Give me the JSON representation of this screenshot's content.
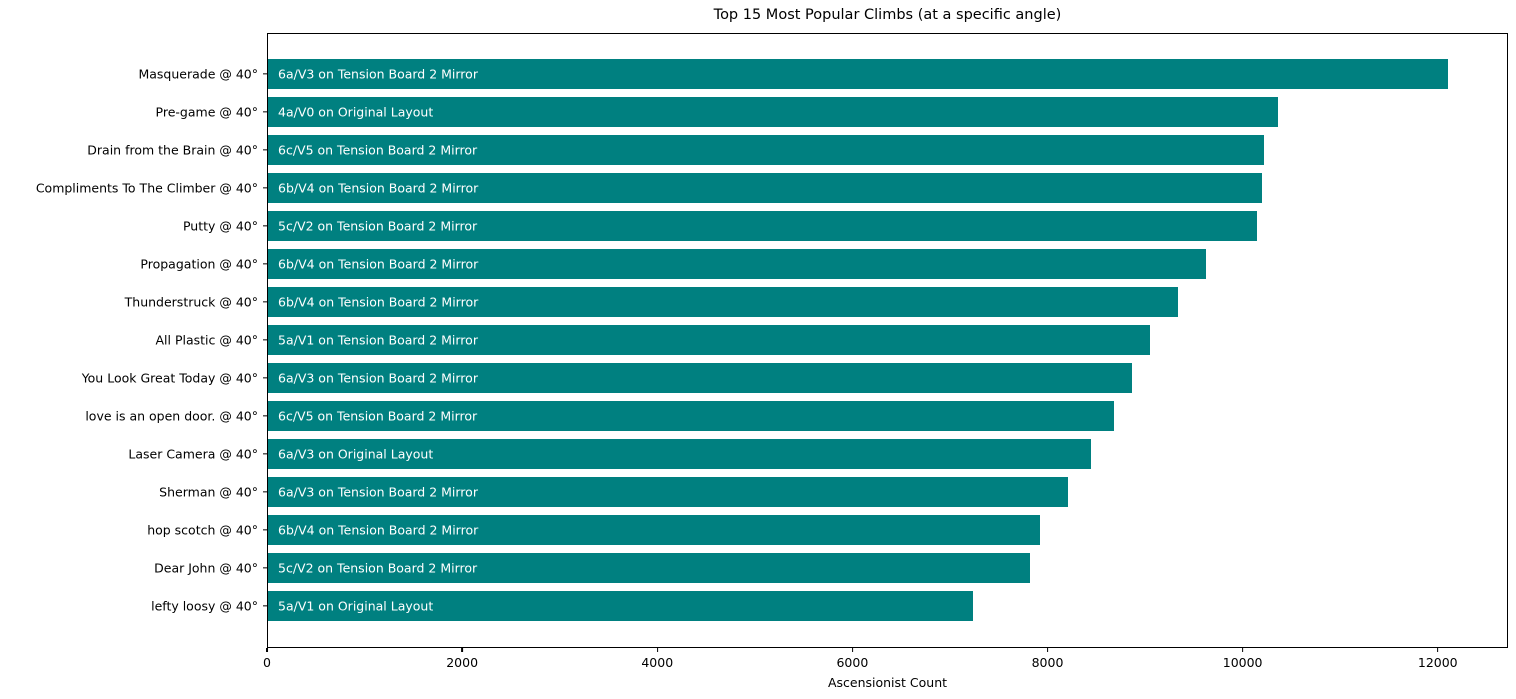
{
  "chart_data": {
    "type": "bar",
    "orientation": "horizontal",
    "title": "Top 15 Most Popular Climbs (at a specific angle)",
    "xlabel": "Ascensionist Count",
    "ylabel": "",
    "xlim": [
      0,
      12720
    ],
    "xticks": [
      0,
      2000,
      4000,
      6000,
      8000,
      10000,
      12000
    ],
    "grid": false,
    "legend": false,
    "bar_color": "#008080",
    "bar_label_color": "#ffffff",
    "categories": [
      "Masquerade @ 40°",
      "Pre-game @ 40°",
      "Drain from the Brain @ 40°",
      "Compliments To The Climber @ 40°",
      "Putty @ 40°",
      "Propagation @ 40°",
      "Thunderstruck @ 40°",
      "All Plastic @ 40°",
      "You Look Great Today @ 40°",
      "love is an open door. @ 40°",
      "Laser Camera @ 40°",
      "Sherman @ 40°",
      "hop scotch @ 40°",
      "Dear John @ 40°",
      "lefty loosy @ 40°"
    ],
    "values": [
      12110,
      10370,
      10230,
      10200,
      10150,
      9630,
      9340,
      9050,
      8870,
      8690,
      8450,
      8210,
      7930,
      7820,
      7240
    ],
    "bar_labels": [
      "6a/V3 on Tension Board 2 Mirror",
      "4a/V0 on Original Layout",
      "6c/V5 on Tension Board 2 Mirror",
      "6b/V4 on Tension Board 2 Mirror",
      "5c/V2 on Tension Board 2 Mirror",
      "6b/V4 on Tension Board 2 Mirror",
      "6b/V4 on Tension Board 2 Mirror",
      "5a/V1 on Tension Board 2 Mirror",
      "6a/V3 on Tension Board 2 Mirror",
      "6c/V5 on Tension Board 2 Mirror",
      "6a/V3 on Original Layout",
      "6a/V3 on Tension Board 2 Mirror",
      "6b/V4 on Tension Board 2 Mirror",
      "5c/V2 on Tension Board 2 Mirror",
      "5a/V1 on Original Layout"
    ]
  }
}
